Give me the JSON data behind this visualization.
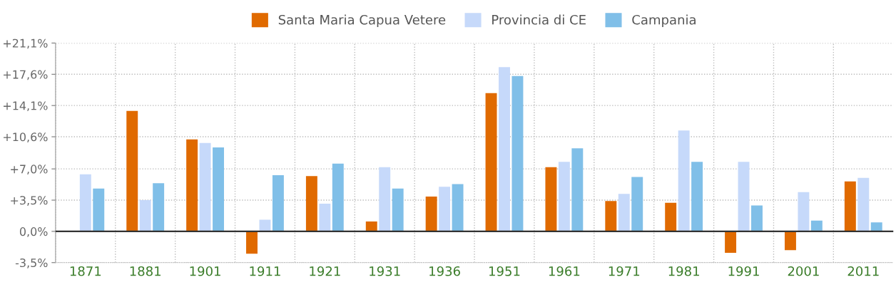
{
  "chart_data": {
    "type": "bar",
    "categories": [
      "1871",
      "1881",
      "1901",
      "1911",
      "1921",
      "1931",
      "1936",
      "1951",
      "1961",
      "1971",
      "1981",
      "1991",
      "2001",
      "2011"
    ],
    "series": [
      {
        "name": "Santa Maria Capua Vetere",
        "color": "#e06a00",
        "values": [
          null,
          13.5,
          10.3,
          -2.5,
          6.2,
          1.1,
          3.9,
          15.5,
          7.2,
          3.4,
          3.2,
          -2.4,
          -2.1,
          5.6
        ]
      },
      {
        "name": "Provincia di CE",
        "color": "#c6d9fa",
        "values": [
          6.4,
          3.5,
          9.9,
          1.3,
          3.1,
          7.2,
          5.0,
          18.4,
          7.8,
          4.2,
          11.3,
          7.8,
          4.4,
          6.0
        ]
      },
      {
        "name": "Campania",
        "color": "#80bfe8",
        "values": [
          4.8,
          5.4,
          9.4,
          6.3,
          7.6,
          4.8,
          5.3,
          17.4,
          9.3,
          6.1,
          7.8,
          2.9,
          1.2,
          1.0
        ]
      }
    ],
    "ylim": [
      -3.5,
      21.1
    ],
    "yticks": [
      {
        "value": -3.5,
        "label": "-3,5%"
      },
      {
        "value": 0,
        "label": "0,0%"
      },
      {
        "value": 3.5,
        "label": "+3,5%"
      },
      {
        "value": 7.0,
        "label": "+7,0%"
      },
      {
        "value": 10.6,
        "label": "+10,6%"
      },
      {
        "value": 14.1,
        "label": "+14,1%"
      },
      {
        "value": 17.6,
        "label": "+17,6%"
      },
      {
        "value": 21.1,
        "label": "+21,1%"
      }
    ],
    "grid": true,
    "legend": "top"
  }
}
